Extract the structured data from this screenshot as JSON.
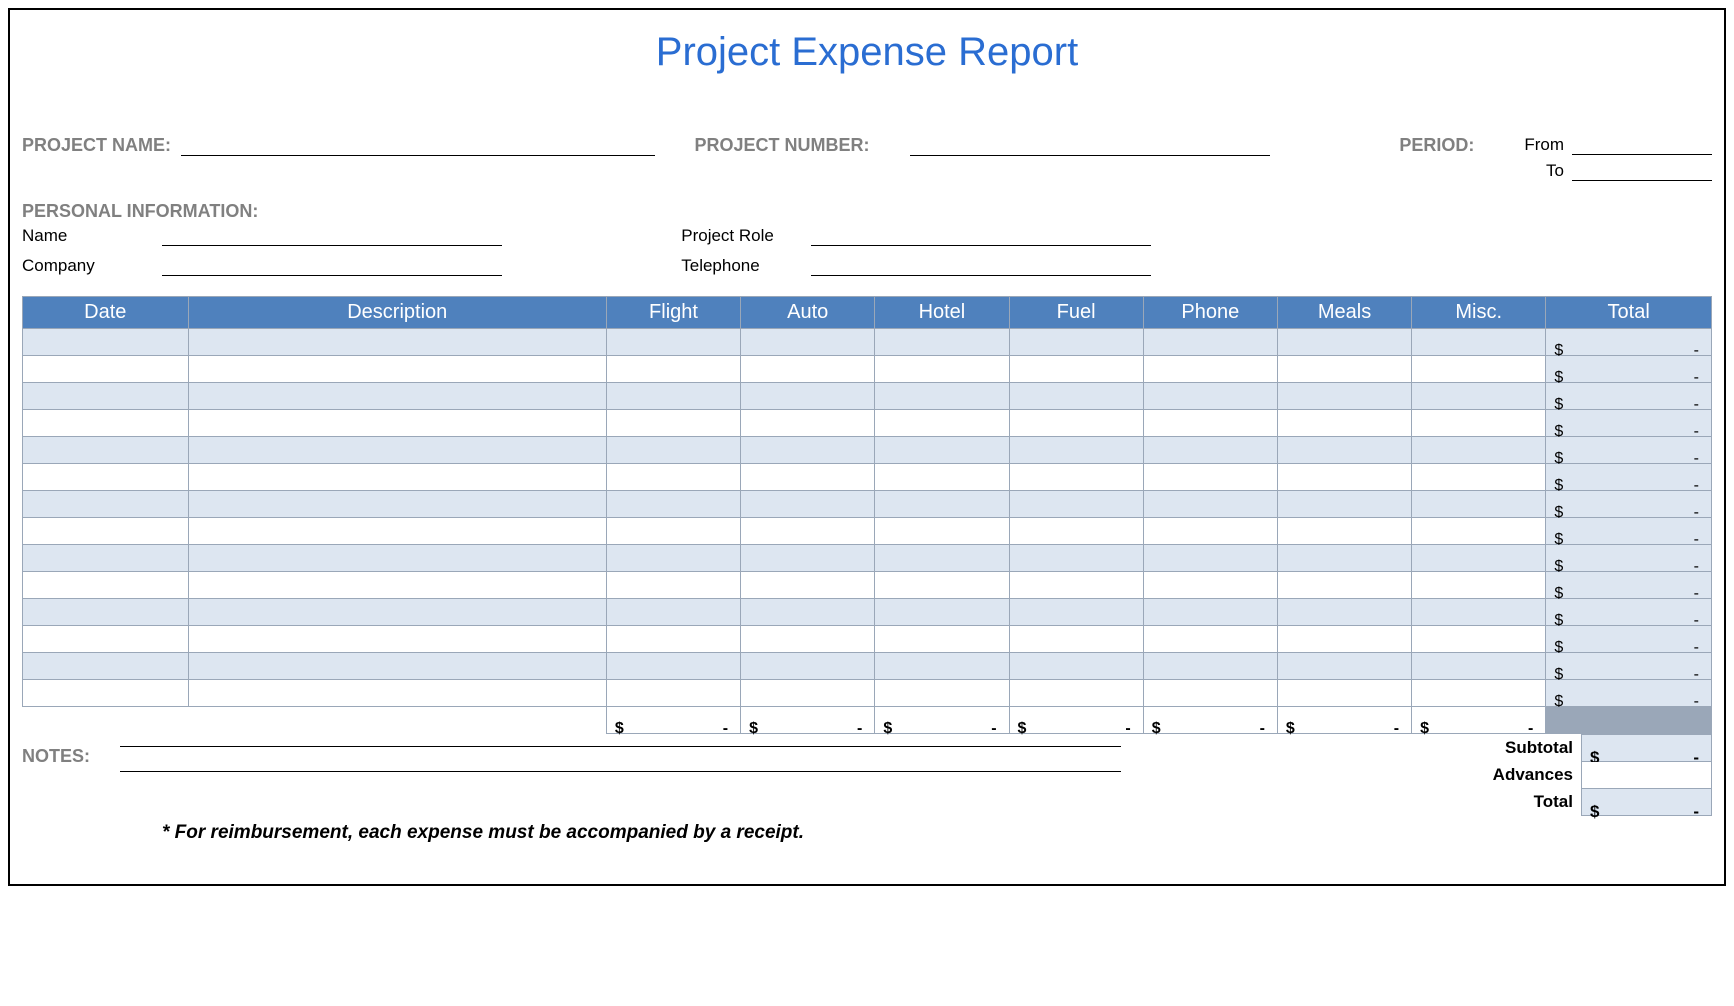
{
  "title": "Project Expense Report",
  "labels": {
    "project_name": "PROJECT NAME:",
    "project_number": "PROJECT NUMBER:",
    "period": "PERIOD:",
    "from": "From",
    "to": "To",
    "personal_info": "PERSONAL INFORMATION:",
    "name": "Name",
    "company": "Company",
    "project_role": "Project Role",
    "telephone": "Telephone",
    "notes": "NOTES:",
    "subtotal": "Subtotal",
    "advances": "Advances",
    "total": "Total"
  },
  "table": {
    "columns": [
      "Date",
      "Description",
      "Flight",
      "Auto",
      "Hotel",
      "Fuel",
      "Phone",
      "Meals",
      "Misc.",
      "Total"
    ],
    "col_widths_pct": [
      9.5,
      24,
      7.7,
      7.7,
      7.7,
      7.7,
      7.7,
      7.7,
      7.7,
      9.5
    ],
    "header_bg": "#4f81bd",
    "header_fg": "#ffffff",
    "row_alt_bg": "#dde6f1",
    "row_plain_bg": "#ffffff",
    "border_color": "#9aa7b8",
    "currency": "$",
    "empty_value": "-",
    "row_count": 14,
    "column_totals": [
      "-",
      "-",
      "-",
      "-",
      "-",
      "-",
      "-"
    ],
    "row_totals": [
      "-",
      "-",
      "-",
      "-",
      "-",
      "-",
      "-",
      "-",
      "-",
      "-",
      "-",
      "-",
      "-",
      "-"
    ]
  },
  "summary": {
    "subtotal": "-",
    "advances": "",
    "total": "-"
  },
  "footnote": "* For reimbursement, each expense must be accompanied by a receipt.",
  "colors": {
    "title": "#2a6dd2",
    "label_gray": "#808080",
    "grand_blank_bg": "#9aa7b8"
  }
}
